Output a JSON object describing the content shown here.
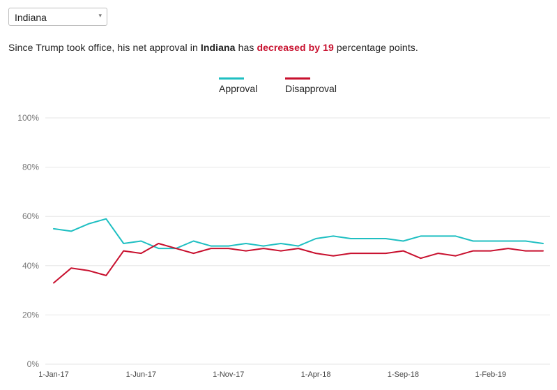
{
  "selector": {
    "value": "Indiana",
    "caret": "▾"
  },
  "headline": {
    "prefix": "Since Trump took office, his net approval in",
    "state": "Indiana",
    "middle": "has",
    "change": "decreased by 19",
    "suffix": "percentage points."
  },
  "colors": {
    "approval": "#1fbfc2",
    "disapproval": "#c8102e",
    "grid": "#e6e6e6",
    "tick": "#777777"
  },
  "chart_data": {
    "type": "line",
    "title": "",
    "xlabel": "",
    "ylabel": "",
    "ylim": [
      0,
      100
    ],
    "y_ticks": [
      "0%",
      "20%",
      "40%",
      "60%",
      "80%",
      "100%"
    ],
    "x": [
      "1-Jan-17",
      "1-Feb-17",
      "1-Mar-17",
      "1-Apr-17",
      "1-May-17",
      "1-Jun-17",
      "1-Jul-17",
      "1-Aug-17",
      "1-Sep-17",
      "1-Oct-17",
      "1-Nov-17",
      "1-Dec-17",
      "1-Jan-18",
      "1-Feb-18",
      "1-Mar-18",
      "1-Apr-18",
      "1-May-18",
      "1-Jun-18",
      "1-Jul-18",
      "1-Aug-18",
      "1-Sep-18",
      "1-Oct-18",
      "1-Nov-18",
      "1-Dec-18",
      "1-Jan-19",
      "1-Feb-19",
      "1-Mar-19",
      "1-Apr-19",
      "1-May-19"
    ],
    "x_tick_labels": [
      "1-Jan-17",
      "1-Jun-17",
      "1-Nov-17",
      "1-Apr-18",
      "1-Sep-18",
      "1-Feb-19"
    ],
    "grid": true,
    "legend": "top-center",
    "series": [
      {
        "name": "Approval",
        "values": [
          55,
          54,
          57,
          59,
          49,
          50,
          47,
          47,
          50,
          48,
          48,
          49,
          48,
          49,
          48,
          51,
          52,
          51,
          51,
          51,
          50,
          52,
          52,
          52,
          50,
          50,
          50,
          50,
          49
        ]
      },
      {
        "name": "Disapproval",
        "values": [
          33,
          39,
          38,
          36,
          46,
          45,
          49,
          47,
          45,
          47,
          47,
          46,
          47,
          46,
          47,
          45,
          44,
          45,
          45,
          45,
          46,
          43,
          45,
          44,
          46,
          46,
          47,
          46,
          46
        ]
      }
    ]
  }
}
